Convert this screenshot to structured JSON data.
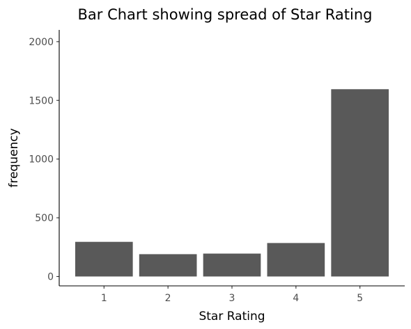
{
  "chart_data": {
    "type": "bar",
    "title": "Bar Chart showing spread of Star Rating",
    "xlabel": "Star Rating",
    "ylabel": "frequency",
    "categories": [
      "1",
      "2",
      "3",
      "4",
      "5"
    ],
    "values": [
      295,
      190,
      195,
      285,
      1595
    ],
    "ylim": [
      -80,
      2100
    ],
    "yticks": [
      0,
      500,
      1000,
      1500,
      2000
    ],
    "ytick_labels": [
      "0",
      "500",
      "1000",
      "1500",
      "2000"
    ],
    "grid": false,
    "bar_color": "#595959"
  }
}
